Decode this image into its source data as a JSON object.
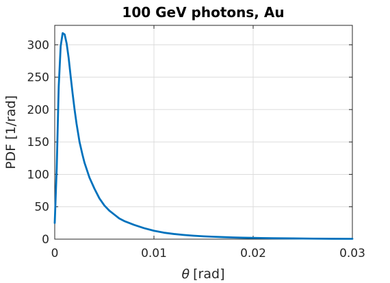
{
  "chart_data": {
    "type": "line",
    "title": "100 GeV photons, Au",
    "xlabel_symbol": "θ",
    "xlabel_unit": "[rad]",
    "ylabel": "PDF [1/rad]",
    "xlim": [
      0,
      0.03
    ],
    "ylim": [
      0,
      330
    ],
    "xticks": [
      0,
      0.01,
      0.02,
      0.03
    ],
    "xtick_labels": [
      "0",
      "0.01",
      "0.02",
      "0.03"
    ],
    "yticks": [
      0,
      50,
      100,
      150,
      200,
      250,
      300
    ],
    "ytick_labels": [
      "0",
      "50",
      "100",
      "150",
      "200",
      "250",
      "300"
    ],
    "grid": true,
    "line_color": "#0072BD",
    "series": [
      {
        "x": [
          0.0,
          0.0002,
          0.0004,
          0.0006,
          0.0008,
          0.001,
          0.0012,
          0.0014,
          0.0016,
          0.0018,
          0.002,
          0.0022,
          0.0025,
          0.0028,
          0.003,
          0.0035,
          0.004,
          0.0045,
          0.005,
          0.0055,
          0.006,
          0.0065,
          0.007,
          0.008,
          0.009,
          0.01,
          0.011,
          0.012,
          0.013,
          0.014,
          0.015,
          0.016,
          0.017,
          0.018,
          0.019,
          0.02,
          0.022,
          0.024,
          0.026,
          0.028,
          0.03
        ],
        "y": [
          25,
          110,
          235,
          298,
          318,
          316,
          302,
          280,
          252,
          225,
          200,
          178,
          150,
          130,
          118,
          95,
          78,
          63,
          52,
          44,
          38,
          32,
          28,
          22,
          17,
          13,
          10,
          8,
          6.5,
          5.3,
          4.4,
          3.7,
          3.1,
          2.6,
          2.2,
          1.9,
          1.4,
          1.1,
          0.8,
          0.6,
          0.5
        ]
      }
    ]
  }
}
